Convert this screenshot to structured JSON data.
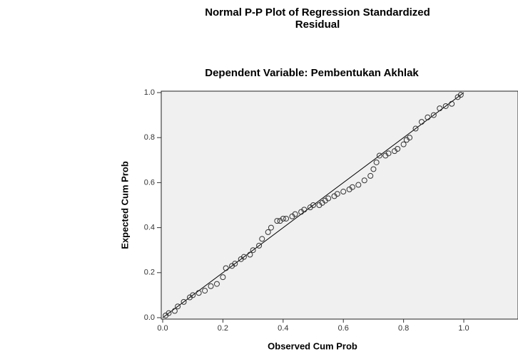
{
  "chart_data": {
    "type": "scatter",
    "title": "Normal P-P Plot of Regression Standardized",
    "title_line2": "Residual",
    "subtitle": "Dependent Variable: Pembentukan Akhlak",
    "x_label": "Observed Cum Prob",
    "y_label": "Expected Cum Prob",
    "xlim": [
      0,
      1.18
    ],
    "ylim": [
      0,
      1.0
    ],
    "xticks": [
      {
        "value": 0,
        "label": "0.0"
      },
      0.2,
      0.4,
      0.6,
      0.8,
      {
        "value": 1,
        "label": "1.0"
      }
    ],
    "yticks": [
      {
        "value": 0,
        "label": "0.0"
      },
      0.2,
      0.4,
      0.6,
      0.8,
      {
        "value": 1,
        "label": "1.0"
      }
    ],
    "color": "#333333",
    "x": [
      0.01,
      0.02,
      0.04,
      0.05,
      0.07,
      0.09,
      0.1,
      0.12,
      0.14,
      0.16,
      0.18,
      0.2,
      0.21,
      0.23,
      0.24,
      0.26,
      0.27,
      0.29,
      0.3,
      0.32,
      0.33,
      0.35,
      0.36,
      0.38,
      0.39,
      0.4,
      0.41,
      0.43,
      0.44,
      0.46,
      0.47,
      0.49,
      0.5,
      0.52,
      0.53,
      0.54,
      0.55,
      0.57,
      0.58,
      0.6,
      0.62,
      0.63,
      0.65,
      0.67,
      0.69,
      0.7,
      0.71,
      0.72,
      0.74,
      0.75,
      0.77,
      0.78,
      0.8,
      0.81,
      0.82,
      0.84,
      0.86,
      0.88,
      0.9,
      0.92,
      0.94,
      0.96,
      0.98,
      0.99
    ],
    "values": [
      0.01,
      0.02,
      0.03,
      0.05,
      0.07,
      0.09,
      0.1,
      0.11,
      0.12,
      0.14,
      0.15,
      0.18,
      0.22,
      0.23,
      0.24,
      0.26,
      0.27,
      0.28,
      0.3,
      0.32,
      0.35,
      0.38,
      0.4,
      0.43,
      0.43,
      0.44,
      0.44,
      0.45,
      0.46,
      0.47,
      0.48,
      0.49,
      0.5,
      0.5,
      0.51,
      0.52,
      0.53,
      0.54,
      0.55,
      0.56,
      0.57,
      0.58,
      0.59,
      0.61,
      0.63,
      0.66,
      0.69,
      0.72,
      0.72,
      0.73,
      0.74,
      0.75,
      0.77,
      0.79,
      0.8,
      0.84,
      0.87,
      0.89,
      0.9,
      0.93,
      0.94,
      0.95,
      0.98,
      0.99
    ],
    "reference_line": {
      "x": [
        0,
        1
      ],
      "y": [
        0,
        1
      ]
    }
  }
}
